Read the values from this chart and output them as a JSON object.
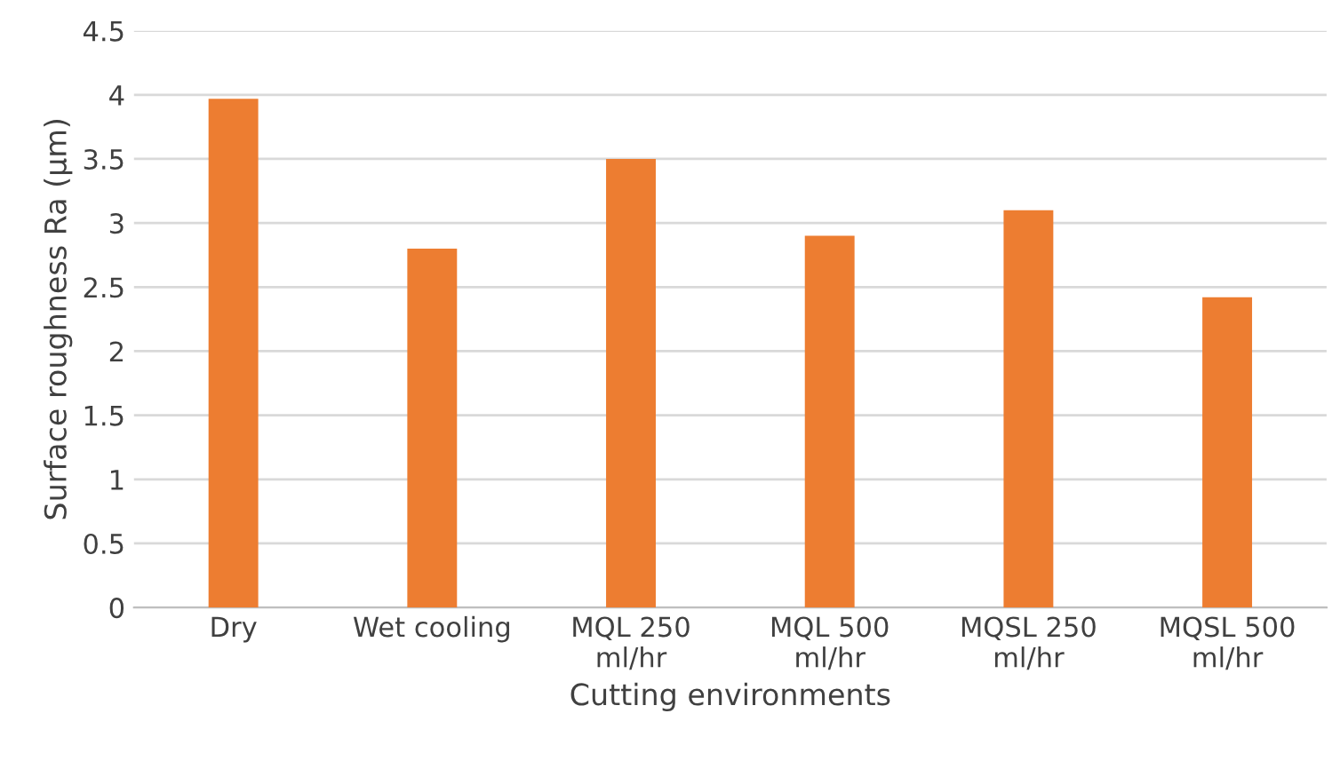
{
  "chart_data": {
    "type": "bar",
    "xlabel": "Cutting environments",
    "ylabel": "Surface roughness Ra (μm)",
    "categories": [
      "Dry",
      "Wet cooling",
      "MQL 250\nml/hr",
      "MQL 500\nml/hr",
      "MQSL 250\nml/hr",
      "MQSL 500\nml/hr"
    ],
    "values": [
      3.97,
      2.8,
      3.5,
      2.9,
      3.1,
      2.42
    ],
    "color": "#ed7d31",
    "ylim": [
      0,
      4.5
    ],
    "yticks": [
      0,
      0.5,
      1,
      1.5,
      2,
      2.5,
      3,
      3.5,
      4,
      4.5
    ],
    "grid": "y"
  }
}
